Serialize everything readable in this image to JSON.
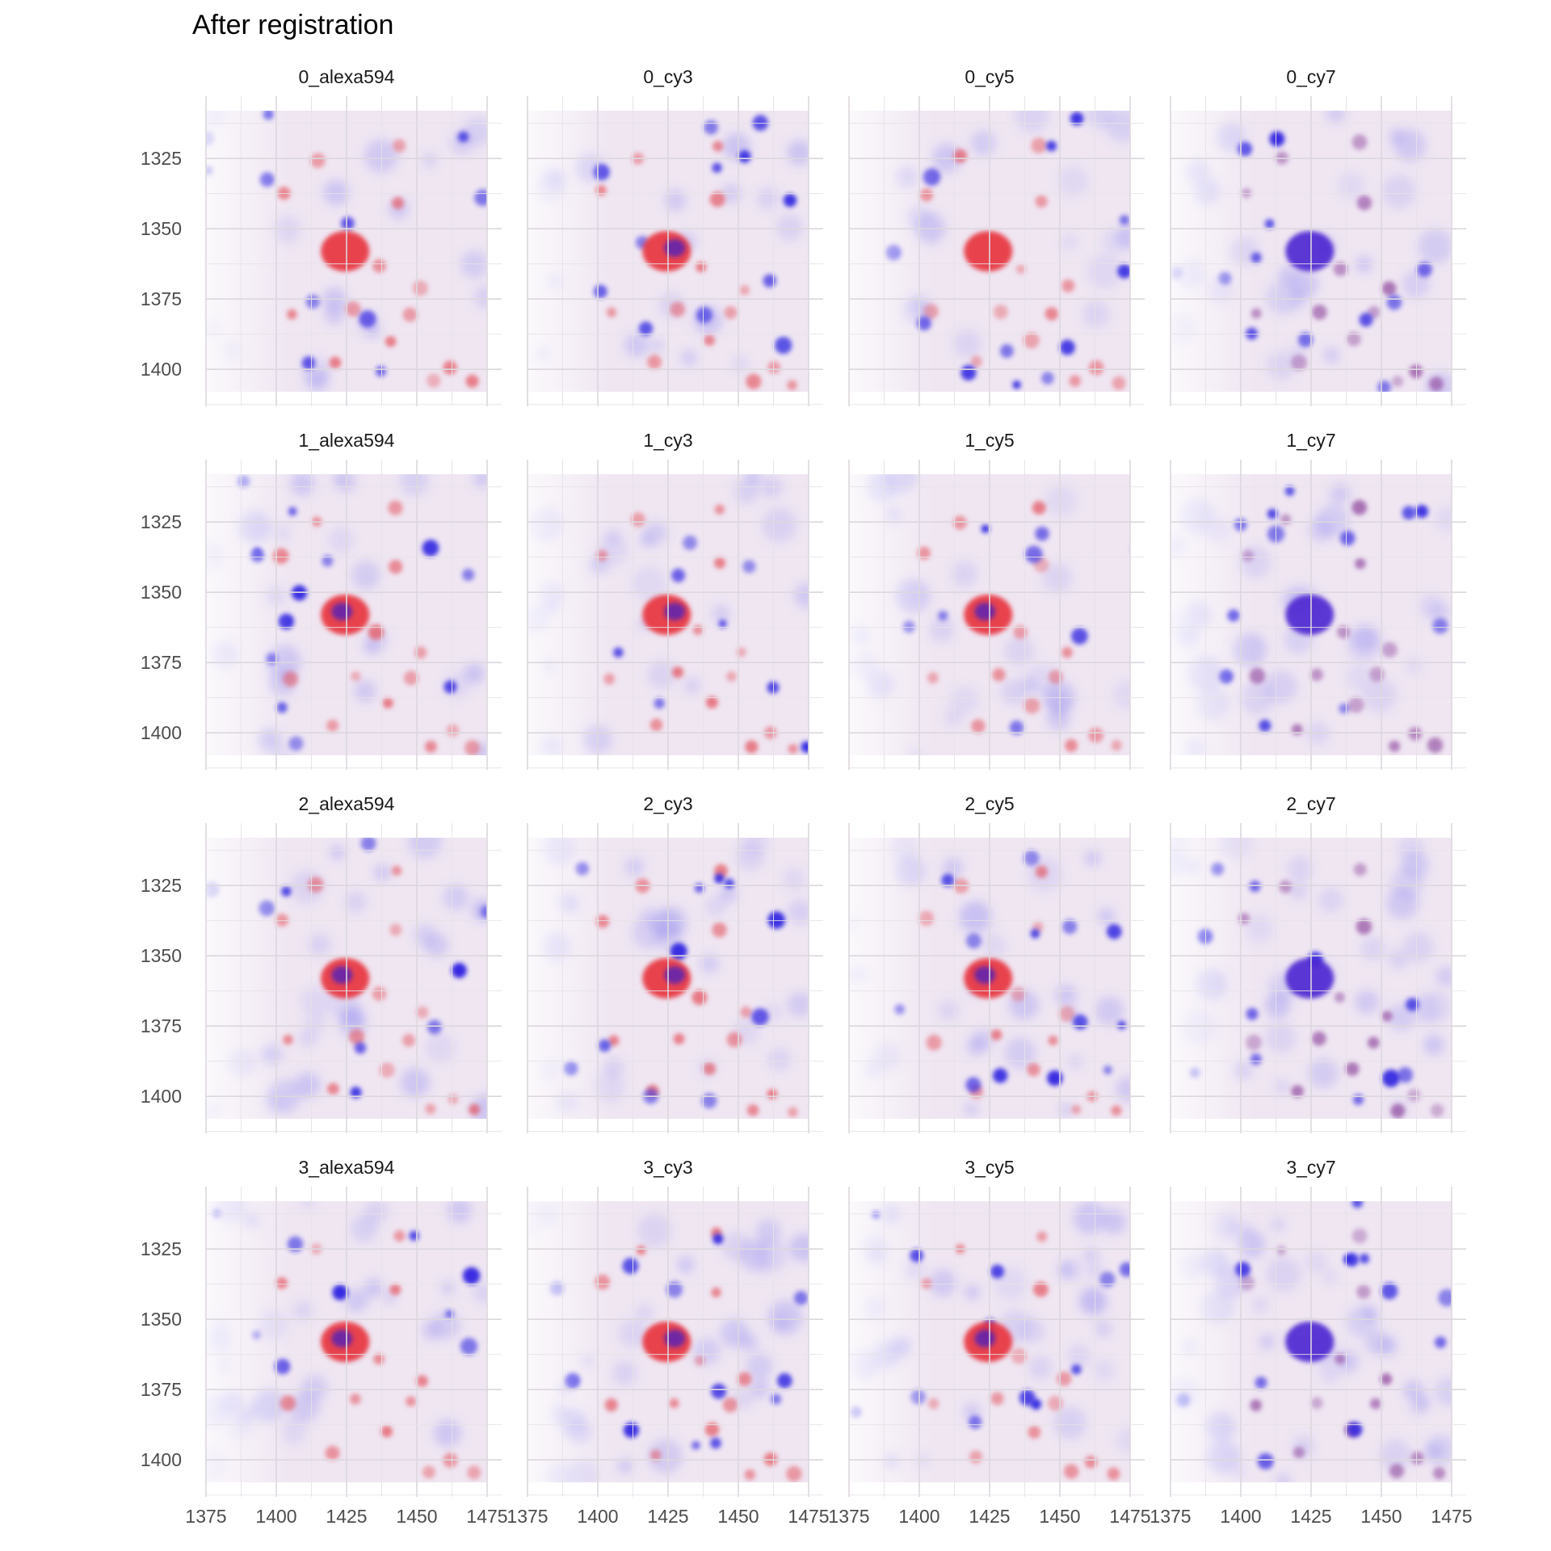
{
  "title": "After registration",
  "chart_data": {
    "type": "heatmap",
    "title": "After registration",
    "xlabel": "",
    "ylabel": "",
    "facet_rows": [
      "0",
      "1",
      "2",
      "3"
    ],
    "facet_cols": [
      "alexa594",
      "cy3",
      "cy5",
      "cy7"
    ],
    "panels": [
      "0_alexa594",
      "0_cy3",
      "0_cy5",
      "0_cy7",
      "1_alexa594",
      "1_cy3",
      "1_cy5",
      "1_cy7",
      "2_alexa594",
      "2_cy3",
      "2_cy5",
      "2_cy7",
      "3_alexa594",
      "3_cy3",
      "3_cy5",
      "3_cy7"
    ],
    "x_ticks": [
      "1375",
      "1400",
      "1425",
      "1450",
      "1475"
    ],
    "y_ticks": [
      "1325",
      "1350",
      "1375",
      "1400"
    ],
    "x_tick_values": [
      1375,
      1400,
      1425,
      1450,
      1475
    ],
    "y_tick_values": [
      1325,
      1350,
      1375,
      1400
    ],
    "xlim": [
      1375,
      1475
    ],
    "ylim": [
      1308,
      1408
    ],
    "y_reversed": true,
    "grid": true,
    "colors": {
      "red_channel": "#e8303a",
      "blue_channel": "#2a1fe0",
      "background": "#efe6f2"
    }
  }
}
